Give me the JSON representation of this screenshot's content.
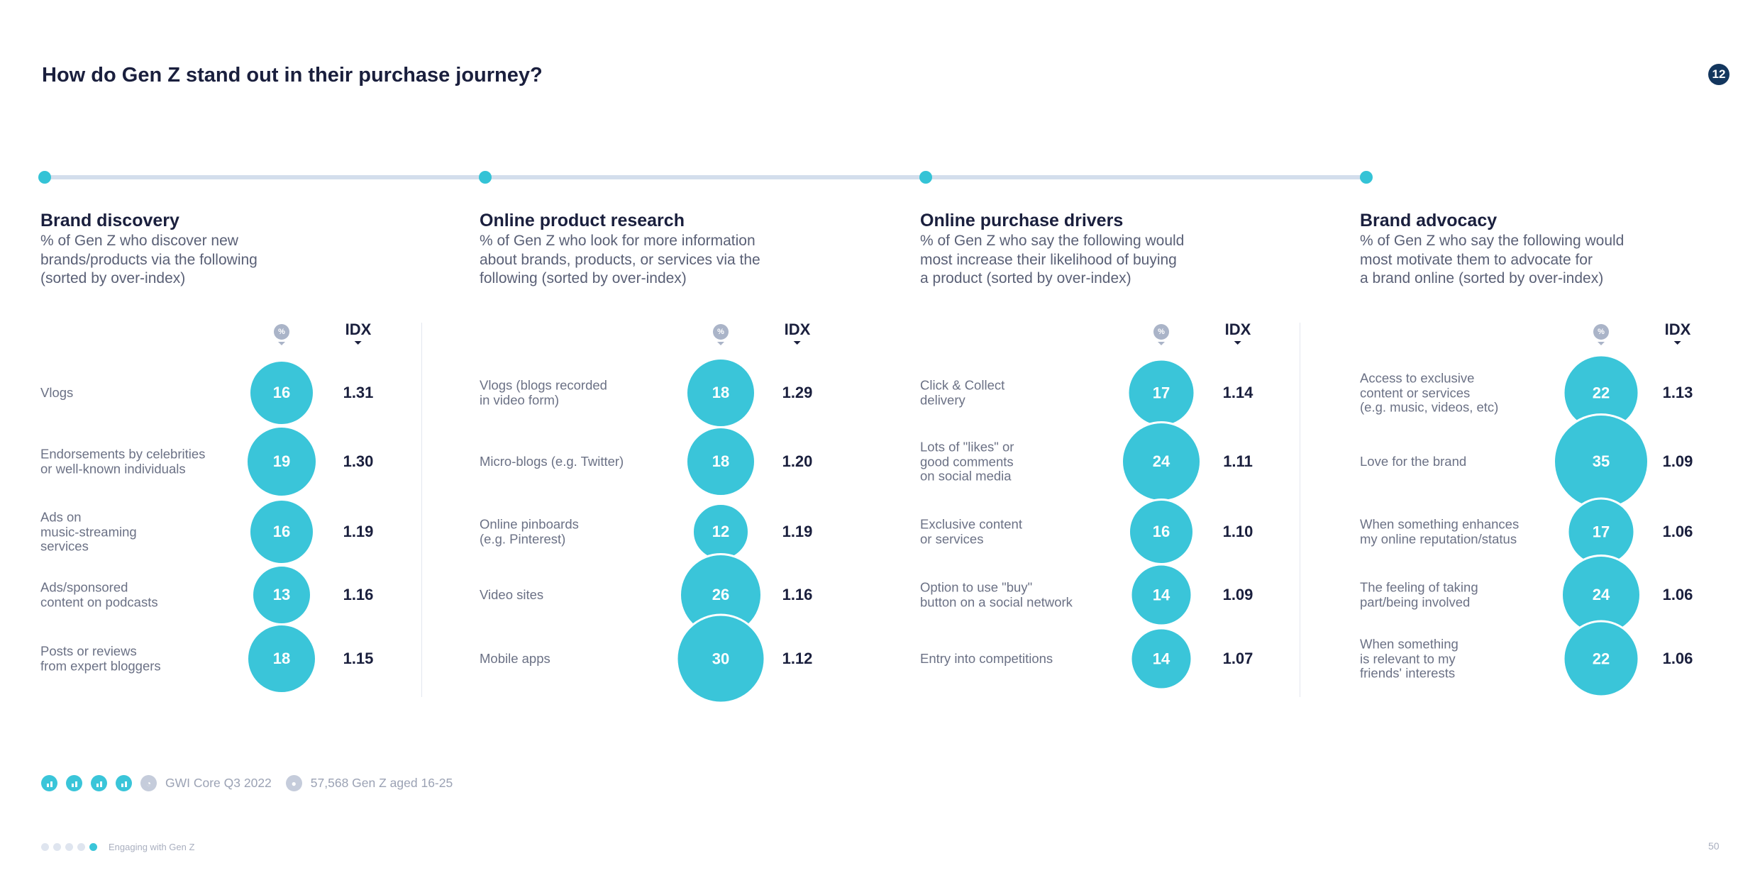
{
  "page_title": "How do Gen Z stand out in their purchase journey?",
  "page_badge": "12",
  "header": {
    "pct_label": "%",
    "idx_label": "IDX"
  },
  "chart_data": [
    {
      "type": "table",
      "title": "Brand discovery",
      "subtitle": "% of Gen Z who discover new\nbrands/products via the following\n(sorted by over-index)",
      "columns": [
        "%",
        "IDX"
      ],
      "rows": [
        {
          "label": "Vlogs",
          "pct": 16,
          "idx": "1.31"
        },
        {
          "label": "Endorsements by celebrities\nor well-known individuals",
          "pct": 19,
          "idx": "1.30"
        },
        {
          "label": "Ads on\nmusic-streaming\nservices",
          "pct": 16,
          "idx": "1.19"
        },
        {
          "label": "Ads/sponsored\ncontent on podcasts",
          "pct": 13,
          "idx": "1.16"
        },
        {
          "label": "Posts or reviews\nfrom expert bloggers",
          "pct": 18,
          "idx": "1.15"
        }
      ]
    },
    {
      "type": "table",
      "title": "Online product research",
      "subtitle": "% of Gen Z who look for more information\nabout brands, products, or services via the\nfollowing (sorted by over-index)",
      "columns": [
        "%",
        "IDX"
      ],
      "rows": [
        {
          "label": "Vlogs (blogs recorded\nin video form)",
          "pct": 18,
          "idx": "1.29"
        },
        {
          "label": "Micro-blogs (e.g. Twitter)",
          "pct": 18,
          "idx": "1.20"
        },
        {
          "label": "Online pinboards\n(e.g. Pinterest)",
          "pct": 12,
          "idx": "1.19"
        },
        {
          "label": "Video sites",
          "pct": 26,
          "idx": "1.16"
        },
        {
          "label": "Mobile apps",
          "pct": 30,
          "idx": "1.12"
        }
      ]
    },
    {
      "type": "table",
      "title": "Online purchase drivers",
      "subtitle": "% of Gen Z who say the following would\nmost increase their likelihood of buying\na product (sorted by over-index)",
      "columns": [
        "%",
        "IDX"
      ],
      "rows": [
        {
          "label": "Click & Collect\ndelivery",
          "pct": 17,
          "idx": "1.14"
        },
        {
          "label": "Lots of \"likes\" or\ngood comments\non social media",
          "pct": 24,
          "idx": "1.11"
        },
        {
          "label": "Exclusive content\nor services",
          "pct": 16,
          "idx": "1.10"
        },
        {
          "label": "Option to use \"buy\"\nbutton on a social network",
          "pct": 14,
          "idx": "1.09"
        },
        {
          "label": "Entry into competitions",
          "pct": 14,
          "idx": "1.07"
        }
      ]
    },
    {
      "type": "table",
      "title": "Brand advocacy",
      "subtitle": "% of Gen Z who say the following would\nmost motivate them to advocate for\na brand online (sorted by over-index)",
      "columns": [
        "%",
        "IDX"
      ],
      "rows": [
        {
          "label": "Access to exclusive\ncontent or services\n(e.g. music, videos, etc)",
          "pct": 22,
          "idx": "1.13"
        },
        {
          "label": "Love for the brand",
          "pct": 35,
          "idx": "1.09"
        },
        {
          "label": "When something enhances\nmy online reputation/status",
          "pct": 17,
          "idx": "1.06"
        },
        {
          "label": "The feeling of taking\npart/being involved",
          "pct": 24,
          "idx": "1.06"
        },
        {
          "label": "When something\nis relevant to my\nfriends' interests",
          "pct": 22,
          "idx": "1.06"
        }
      ]
    }
  ],
  "footer": {
    "source": "GWI Core Q3 2022",
    "sample": "57,568 Gen Z aged 16-25"
  },
  "bottom": {
    "report_name": "Engaging with Gen Z",
    "page_number": "50"
  },
  "colors": {
    "accent": "#3ac5d9",
    "navy": "#13365e",
    "timeline": "#d3deec"
  }
}
